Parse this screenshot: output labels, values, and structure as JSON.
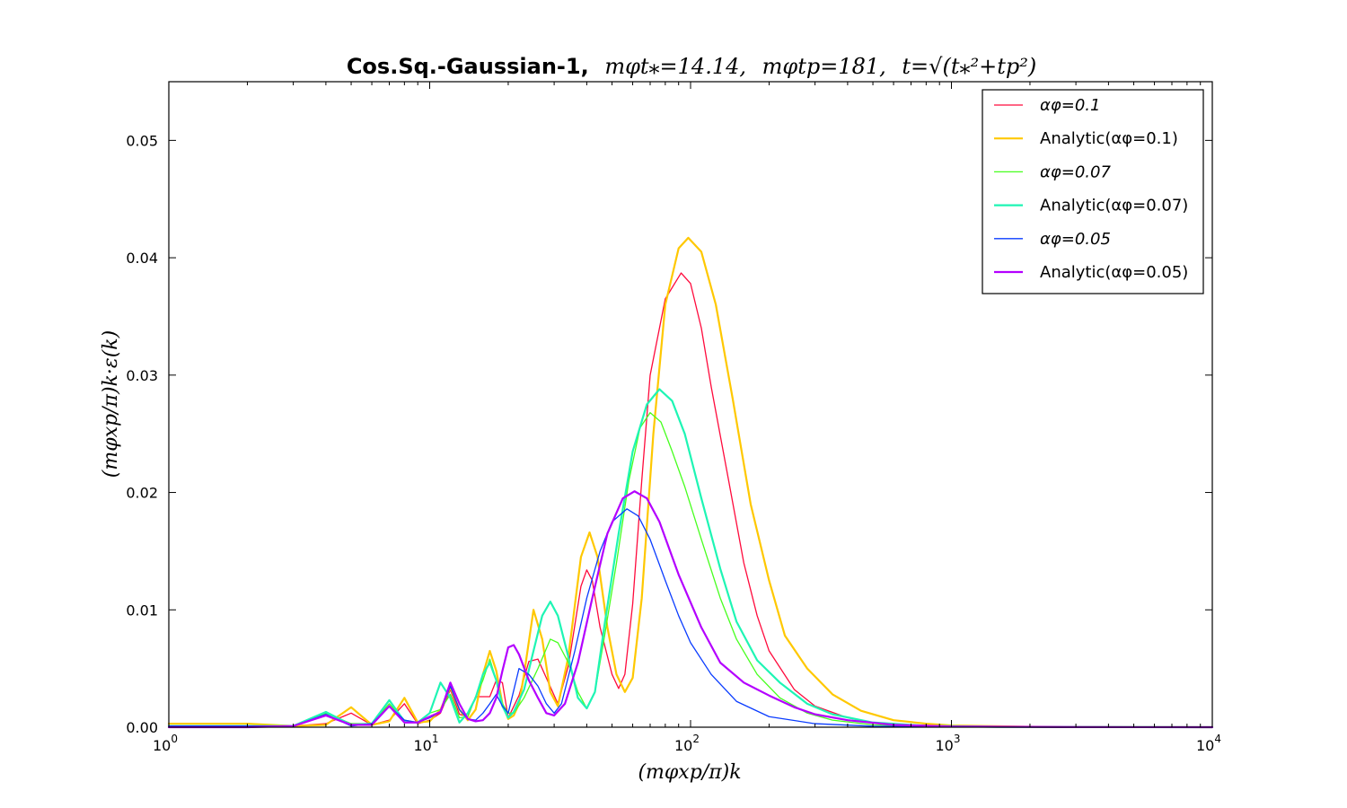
{
  "chart_data": {
    "type": "line",
    "title": {
      "bold": "Cos.Sq.-Gaussian-1,",
      "part1": "mφt⁎=14.14,",
      "part2": "mφtp=181,",
      "part3": "t=√(t⁎²+tp²)"
    },
    "xlabel": "(mφxp/π)k",
    "ylabel": "(mφxp/π)k·ε(k)",
    "xscale": "log",
    "xlim": [
      1,
      10000
    ],
    "ylim": [
      0,
      0.055
    ],
    "x_ticks": [
      {
        "value": 1,
        "label": "10",
        "exp": "0"
      },
      {
        "value": 10,
        "label": "10",
        "exp": "1"
      },
      {
        "value": 100,
        "label": "10",
        "exp": "2"
      },
      {
        "value": 1000,
        "label": "10",
        "exp": "3"
      },
      {
        "value": 10000,
        "label": "10",
        "exp": "4"
      }
    ],
    "y_ticks": [
      {
        "value": 0.0,
        "label": "0.00"
      },
      {
        "value": 0.01,
        "label": "0.01"
      },
      {
        "value": 0.02,
        "label": "0.02"
      },
      {
        "value": 0.03,
        "label": "0.03"
      },
      {
        "value": 0.04,
        "label": "0.04"
      },
      {
        "value": 0.05,
        "label": "0.05"
      }
    ],
    "legend_position": "top-right",
    "grid": false,
    "series": [
      {
        "name": "αφ=0.1",
        "color": "#ff0a3c",
        "width": 1.3,
        "points": [
          [
            1,
            0.0001
          ],
          [
            2,
            0.0001
          ],
          [
            3,
            0.0001
          ],
          [
            4,
            0.0003
          ],
          [
            5,
            0.0012
          ],
          [
            6,
            0.0002
          ],
          [
            7,
            0.0006
          ],
          [
            8,
            0.002
          ],
          [
            9,
            0.0003
          ],
          [
            10,
            0.0006
          ],
          [
            11,
            0.0012
          ],
          [
            12,
            0.0032
          ],
          [
            13,
            0.0011
          ],
          [
            14,
            0.0009
          ],
          [
            15,
            0.0026
          ],
          [
            16,
            0.0026
          ],
          [
            17,
            0.0026
          ],
          [
            18,
            0.004
          ],
          [
            19,
            0.0038
          ],
          [
            20,
            0.0008
          ],
          [
            22,
            0.0027
          ],
          [
            24,
            0.0056
          ],
          [
            26,
            0.0058
          ],
          [
            28,
            0.0042
          ],
          [
            31,
            0.002
          ],
          [
            34,
            0.0052
          ],
          [
            38,
            0.012
          ],
          [
            40,
            0.0134
          ],
          [
            42,
            0.0125
          ],
          [
            45,
            0.0085
          ],
          [
            50,
            0.0045
          ],
          [
            53,
            0.0033
          ],
          [
            56,
            0.0045
          ],
          [
            60,
            0.0105
          ],
          [
            65,
            0.021
          ],
          [
            70,
            0.03
          ],
          [
            80,
            0.0365
          ],
          [
            92,
            0.0387
          ],
          [
            100,
            0.0378
          ],
          [
            110,
            0.034
          ],
          [
            120,
            0.029
          ],
          [
            140,
            0.021
          ],
          [
            160,
            0.014
          ],
          [
            180,
            0.0095
          ],
          [
            200,
            0.0065
          ],
          [
            250,
            0.0032
          ],
          [
            300,
            0.0018
          ],
          [
            400,
            0.0008
          ],
          [
            500,
            0.0004
          ],
          [
            700,
            0.0002
          ],
          [
            1000,
            0.0001
          ],
          [
            2000,
            3e-05
          ],
          [
            10000,
            0.0
          ]
        ]
      },
      {
        "name": "Analytic(αφ=0.1)",
        "color": "#ffc800",
        "width": 2.2,
        "points": [
          [
            1,
            0.0003
          ],
          [
            2,
            0.0003
          ],
          [
            3,
            0.0001
          ],
          [
            4,
            0.0002
          ],
          [
            5,
            0.0017
          ],
          [
            6,
            0.0002
          ],
          [
            7,
            0.0005
          ],
          [
            8,
            0.0025
          ],
          [
            9,
            0.0004
          ],
          [
            10,
            0.0005
          ],
          [
            11,
            0.0015
          ],
          [
            12,
            0.0034
          ],
          [
            13,
            0.0015
          ],
          [
            14,
            0.0006
          ],
          [
            15,
            0.0015
          ],
          [
            16,
            0.0045
          ],
          [
            17,
            0.0065
          ],
          [
            18,
            0.0048
          ],
          [
            19,
            0.002
          ],
          [
            20,
            0.0007
          ],
          [
            21,
            0.001
          ],
          [
            22,
            0.002
          ],
          [
            23,
            0.0045
          ],
          [
            25,
            0.01
          ],
          [
            27,
            0.0075
          ],
          [
            29,
            0.003
          ],
          [
            31,
            0.0018
          ],
          [
            34,
            0.006
          ],
          [
            38,
            0.0145
          ],
          [
            41,
            0.0166
          ],
          [
            44,
            0.0145
          ],
          [
            48,
            0.0085
          ],
          [
            52,
            0.0045
          ],
          [
            56,
            0.003
          ],
          [
            60,
            0.0042
          ],
          [
            65,
            0.011
          ],
          [
            72,
            0.025
          ],
          [
            80,
            0.036
          ],
          [
            90,
            0.0408
          ],
          [
            98,
            0.0417
          ],
          [
            110,
            0.0405
          ],
          [
            125,
            0.036
          ],
          [
            145,
            0.028
          ],
          [
            170,
            0.019
          ],
          [
            200,
            0.0125
          ],
          [
            230,
            0.0078
          ],
          [
            280,
            0.005
          ],
          [
            350,
            0.0028
          ],
          [
            450,
            0.0014
          ],
          [
            600,
            0.0006
          ],
          [
            800,
            0.0003
          ],
          [
            1000,
            0.00015
          ],
          [
            2000,
            4e-05
          ],
          [
            10000,
            0.0
          ]
        ]
      },
      {
        "name": "αφ=0.07",
        "color": "#46ff1e",
        "width": 1.3,
        "points": [
          [
            1,
            0.0001
          ],
          [
            2,
            0.0001
          ],
          [
            3,
            0.0001
          ],
          [
            4,
            0.0012
          ],
          [
            5,
            0.0003
          ],
          [
            6,
            0.0003
          ],
          [
            7,
            0.002
          ],
          [
            8,
            0.0006
          ],
          [
            9,
            0.0004
          ],
          [
            10,
            0.0012
          ],
          [
            11,
            0.0015
          ],
          [
            12,
            0.0028
          ],
          [
            13,
            0.0008
          ],
          [
            14,
            0.0009
          ],
          [
            15,
            0.0026
          ],
          [
            16,
            0.004
          ],
          [
            17,
            0.0058
          ],
          [
            18,
            0.004
          ],
          [
            19,
            0.002
          ],
          [
            20,
            0.0012
          ],
          [
            21,
            0.0012
          ],
          [
            23,
            0.0025
          ],
          [
            26,
            0.005
          ],
          [
            29,
            0.0075
          ],
          [
            31,
            0.0072
          ],
          [
            34,
            0.0055
          ],
          [
            37,
            0.003
          ],
          [
            40,
            0.0016
          ],
          [
            43,
            0.003
          ],
          [
            47,
            0.008
          ],
          [
            52,
            0.014
          ],
          [
            58,
            0.021
          ],
          [
            64,
            0.0255
          ],
          [
            70,
            0.0268
          ],
          [
            77,
            0.026
          ],
          [
            85,
            0.0235
          ],
          [
            95,
            0.0205
          ],
          [
            110,
            0.016
          ],
          [
            130,
            0.011
          ],
          [
            150,
            0.0075
          ],
          [
            180,
            0.0045
          ],
          [
            220,
            0.0025
          ],
          [
            280,
            0.0012
          ],
          [
            350,
            0.0006
          ],
          [
            500,
            0.0002
          ],
          [
            800,
            6e-05
          ],
          [
            1500,
            2e-05
          ],
          [
            10000,
            0.0
          ]
        ]
      },
      {
        "name": "Analytic(αφ=0.07)",
        "color": "#1ef5b4",
        "width": 2.2,
        "points": [
          [
            1,
            0.0001
          ],
          [
            2,
            0.0001
          ],
          [
            3,
            0.0001
          ],
          [
            4,
            0.0013
          ],
          [
            5,
            0.0002
          ],
          [
            6,
            0.0003
          ],
          [
            7,
            0.0023
          ],
          [
            8,
            0.0005
          ],
          [
            9,
            0.0004
          ],
          [
            10,
            0.0012
          ],
          [
            11,
            0.0038
          ],
          [
            12,
            0.0025
          ],
          [
            13,
            0.0004
          ],
          [
            14,
            0.0012
          ],
          [
            15,
            0.0025
          ],
          [
            16,
            0.0045
          ],
          [
            17,
            0.0055
          ],
          [
            18,
            0.004
          ],
          [
            19,
            0.0018
          ],
          [
            20,
            0.0008
          ],
          [
            21,
            0.0013
          ],
          [
            23,
            0.0032
          ],
          [
            25,
            0.0065
          ],
          [
            27,
            0.0095
          ],
          [
            29,
            0.0107
          ],
          [
            31,
            0.0095
          ],
          [
            34,
            0.006
          ],
          [
            37,
            0.0025
          ],
          [
            40,
            0.0016
          ],
          [
            43,
            0.003
          ],
          [
            47,
            0.009
          ],
          [
            53,
            0.0165
          ],
          [
            60,
            0.0235
          ],
          [
            68,
            0.0275
          ],
          [
            76,
            0.0288
          ],
          [
            85,
            0.0278
          ],
          [
            95,
            0.025
          ],
          [
            110,
            0.0195
          ],
          [
            130,
            0.0135
          ],
          [
            150,
            0.009
          ],
          [
            180,
            0.0057
          ],
          [
            220,
            0.0038
          ],
          [
            280,
            0.002
          ],
          [
            350,
            0.0011
          ],
          [
            500,
            0.0004
          ],
          [
            800,
            0.00012
          ],
          [
            1500,
            3e-05
          ],
          [
            10000,
            0.0
          ]
        ]
      },
      {
        "name": "αφ=0.05",
        "color": "#0a3cff",
        "width": 1.3,
        "points": [
          [
            1,
            0.0001
          ],
          [
            2,
            0.0001
          ],
          [
            3,
            0.0001
          ],
          [
            4,
            0.0011
          ],
          [
            5,
            0.0001
          ],
          [
            6,
            0.0003
          ],
          [
            7,
            0.0018
          ],
          [
            8,
            0.0006
          ],
          [
            9,
            0.0004
          ],
          [
            10,
            0.0008
          ],
          [
            11,
            0.0013
          ],
          [
            12,
            0.0035
          ],
          [
            13,
            0.0015
          ],
          [
            14,
            0.0007
          ],
          [
            15,
            0.0006
          ],
          [
            16,
            0.0012
          ],
          [
            17,
            0.002
          ],
          [
            18,
            0.0028
          ],
          [
            19,
            0.0018
          ],
          [
            20,
            0.0012
          ],
          [
            22,
            0.005
          ],
          [
            24,
            0.0045
          ],
          [
            26,
            0.0035
          ],
          [
            28,
            0.002
          ],
          [
            30,
            0.0012
          ],
          [
            32,
            0.002
          ],
          [
            36,
            0.0065
          ],
          [
            40,
            0.011
          ],
          [
            45,
            0.015
          ],
          [
            50,
            0.0175
          ],
          [
            57,
            0.0186
          ],
          [
            63,
            0.018
          ],
          [
            70,
            0.016
          ],
          [
            80,
            0.0125
          ],
          [
            90,
            0.0095
          ],
          [
            100,
            0.0072
          ],
          [
            120,
            0.0045
          ],
          [
            150,
            0.0022
          ],
          [
            200,
            0.0009
          ],
          [
            300,
            0.0003
          ],
          [
            500,
            8e-05
          ],
          [
            1000,
            2e-05
          ],
          [
            10000,
            0.0
          ]
        ]
      },
      {
        "name": "Analytic(αφ=0.05)",
        "color": "#b400ff",
        "width": 2.2,
        "points": [
          [
            1,
            0.0
          ],
          [
            2,
            0.0
          ],
          [
            3,
            0.0001
          ],
          [
            4,
            0.001
          ],
          [
            5,
            0.0002
          ],
          [
            6,
            0.0002
          ],
          [
            7,
            0.0018
          ],
          [
            8,
            0.0004
          ],
          [
            9,
            0.0004
          ],
          [
            10,
            0.0009
          ],
          [
            11,
            0.0013
          ],
          [
            12,
            0.0038
          ],
          [
            13,
            0.002
          ],
          [
            14,
            0.0007
          ],
          [
            15,
            0.0005
          ],
          [
            16,
            0.0006
          ],
          [
            17,
            0.0012
          ],
          [
            18,
            0.0025
          ],
          [
            19,
            0.0048
          ],
          [
            20,
            0.0068
          ],
          [
            21,
            0.007
          ],
          [
            22,
            0.0062
          ],
          [
            24,
            0.004
          ],
          [
            26,
            0.0025
          ],
          [
            28,
            0.0012
          ],
          [
            30,
            0.001
          ],
          [
            33,
            0.002
          ],
          [
            37,
            0.0055
          ],
          [
            42,
            0.011
          ],
          [
            48,
            0.0165
          ],
          [
            55,
            0.0195
          ],
          [
            61,
            0.0201
          ],
          [
            68,
            0.0195
          ],
          [
            76,
            0.0175
          ],
          [
            90,
            0.013
          ],
          [
            110,
            0.0085
          ],
          [
            130,
            0.0055
          ],
          [
            160,
            0.0038
          ],
          [
            200,
            0.0027
          ],
          [
            250,
            0.0017
          ],
          [
            300,
            0.0011
          ],
          [
            400,
            0.0006
          ],
          [
            600,
            0.0002
          ],
          [
            1000,
            6e-05
          ],
          [
            3000,
            1e-05
          ],
          [
            10000,
            0.0
          ]
        ]
      }
    ]
  }
}
